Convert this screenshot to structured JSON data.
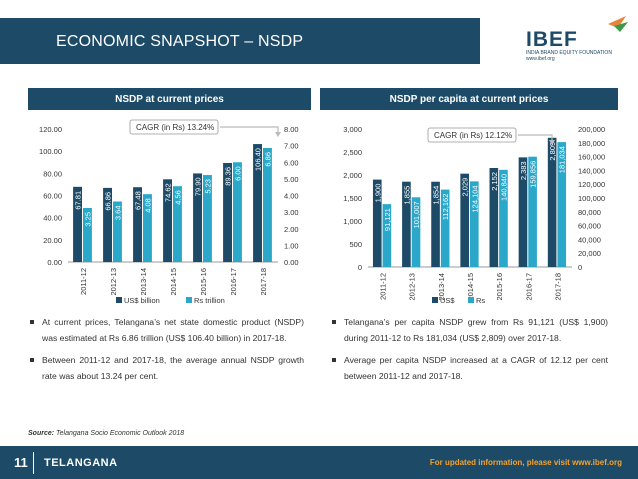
{
  "header": {
    "title": "ECONOMIC SNAPSHOT – NSDP"
  },
  "logo": {
    "text": "IBEF",
    "subtitle": "INDIA BRAND EQUITY FOUNDATION",
    "url": "www.ibef.org"
  },
  "panels": [
    {
      "title": "NSDP at current prices"
    },
    {
      "title": "NSDP per capita at current prices"
    }
  ],
  "chart_data": [
    {
      "type": "bar",
      "categories": [
        "2011-12",
        "2012-13",
        "2013-14",
        "2014-15",
        "2015-16",
        "2016-17",
        "2017-18"
      ],
      "series": [
        {
          "name": "US$ billion",
          "axis": "left",
          "color": "#1c4a67",
          "values": [
            67.81,
            66.86,
            67.48,
            74.62,
            79.9,
            89.36,
            106.4
          ],
          "labels": [
            "67.81",
            "66.86",
            "67.48",
            "74.62",
            "79.90",
            "89.36",
            "106.40"
          ]
        },
        {
          "name": "Rs trillion",
          "axis": "right",
          "color": "#2aa7c9",
          "values": [
            3.25,
            3.64,
            4.08,
            4.56,
            5.23,
            6.0,
            6.86
          ],
          "labels": [
            "3.25",
            "3.64",
            "4.08",
            "4.56",
            "5.23",
            "6.00",
            "6.86"
          ]
        }
      ],
      "ylim_left": [
        0,
        120
      ],
      "yticks_left": [
        "0.00",
        "20.00",
        "40.00",
        "60.00",
        "80.00",
        "100.00",
        "120.00"
      ],
      "ylim_right": [
        0,
        8
      ],
      "yticks_right": [
        "0.00",
        "1.00",
        "2.00",
        "3.00",
        "4.00",
        "5.00",
        "6.00",
        "7.00",
        "8.00"
      ],
      "annotation": "CAGR (in Rs) 13.24%",
      "legend": "bottom"
    },
    {
      "type": "bar",
      "categories": [
        "2011-12",
        "2012-13",
        "2013-14",
        "2014-15",
        "2015-16",
        "2016-17",
        "2017-18"
      ],
      "series": [
        {
          "name": "US$",
          "axis": "left",
          "color": "#1c4a67",
          "values": [
            1900,
            1855,
            1854,
            2029,
            2152,
            2383,
            2809
          ],
          "labels": [
            "1,900",
            "1,855",
            "1,854",
            "2,029",
            "2,152",
            "2,383",
            "2,809"
          ]
        },
        {
          "name": "Rs",
          "axis": "right",
          "color": "#2aa7c9",
          "values": [
            91121,
            101007,
            112162,
            124104,
            140840,
            159856,
            181034
          ],
          "labels": [
            "91,121",
            "101,007",
            "112,162",
            "124,104",
            "140,840",
            "159,856",
            "181,034"
          ]
        }
      ],
      "ylim_left": [
        0,
        3000
      ],
      "yticks_left": [
        "0",
        "500",
        "1,000",
        "1,500",
        "2,000",
        "2,500",
        "3,000"
      ],
      "ylim_right": [
        0,
        200000
      ],
      "yticks_right": [
        "0",
        "20,000",
        "40,000",
        "60,000",
        "80,000",
        "100,000",
        "120,000",
        "140,000",
        "160,000",
        "180,000",
        "200,000"
      ],
      "annotation": "CAGR (in Rs) 12.12%",
      "legend": "bottom"
    }
  ],
  "bullets_left": [
    "At current prices, Telangana’s net state domestic product (NSDP) was estimated at Rs 6.86 trillion (US$ 106.40 billion) in 2017-18.",
    "Between 2011-12 and 2017-18, the average annual NSDP growth rate was about 13.24 per cent."
  ],
  "bullets_right": [
    "Telangana’s per capita NSDP grew from Rs 91,121 (US$ 1,900) during 2011-12 to Rs 181,034 (US$ 2,809) over 2017-18.",
    "Average per capita NSDP increased at a CAGR of 12.12 per cent between 2011-12 and 2017-18."
  ],
  "source": {
    "label": "Source:",
    "text": "Telangana Socio Economic Outlook 2018"
  },
  "footer": {
    "page": "11",
    "state": "TELANGANA",
    "update": "For updated information, please visit www.ibef.org"
  }
}
